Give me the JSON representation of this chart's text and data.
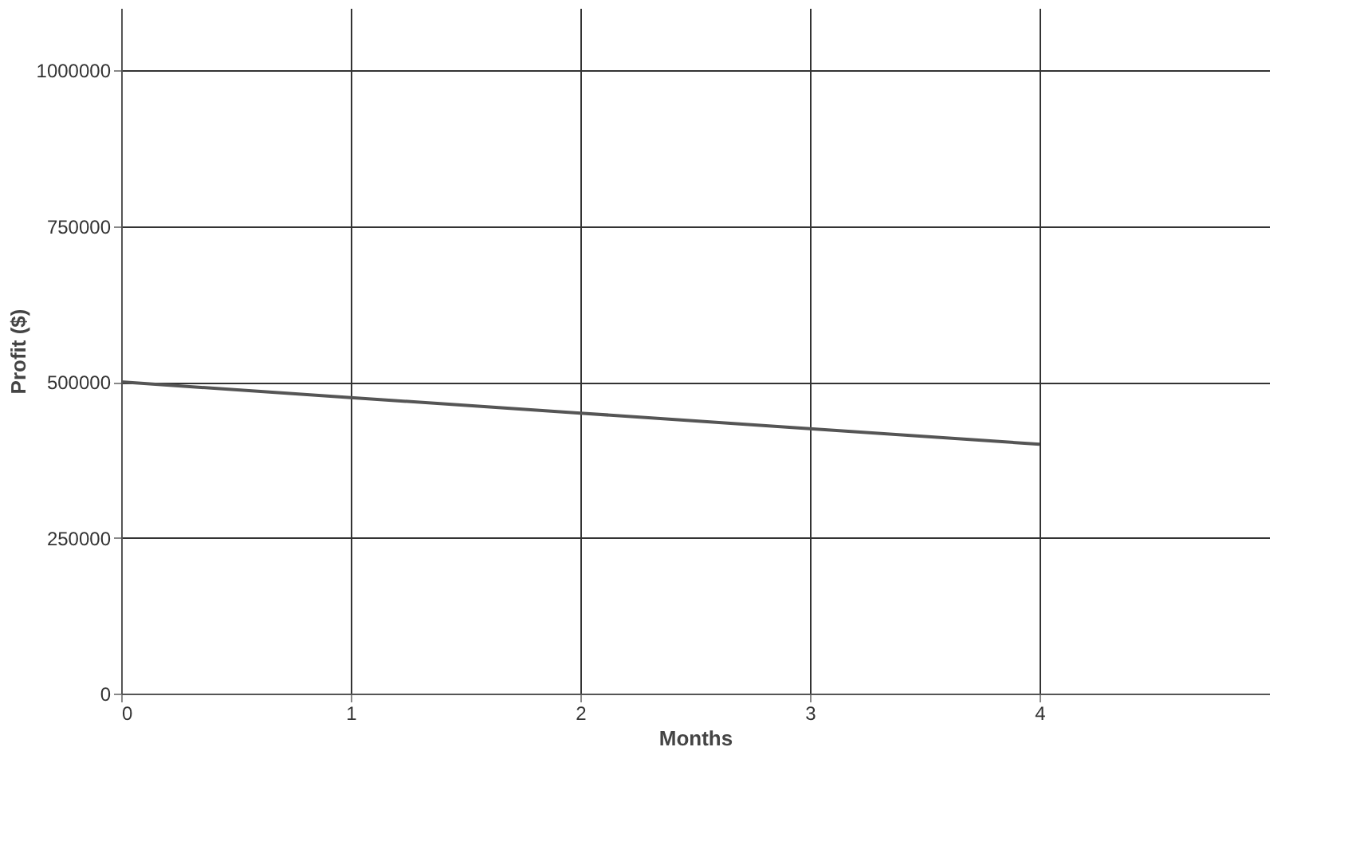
{
  "chart_data": {
    "type": "line",
    "xlabel": "Months",
    "ylabel": "Profit ($)",
    "x": [
      0,
      1,
      2,
      3,
      4
    ],
    "series": [
      {
        "color": "#555555",
        "values": [
          500000,
          475000,
          450000,
          425000,
          400000
        ]
      }
    ],
    "xlim": [
      0,
      5
    ],
    "xticks": [
      0,
      1,
      2,
      3,
      4
    ],
    "ylim": [
      0,
      1100000
    ],
    "yticks": [
      0,
      250000,
      500000,
      750000,
      1000000
    ],
    "grid": true,
    "marker": "none",
    "line_style": "solid"
  }
}
